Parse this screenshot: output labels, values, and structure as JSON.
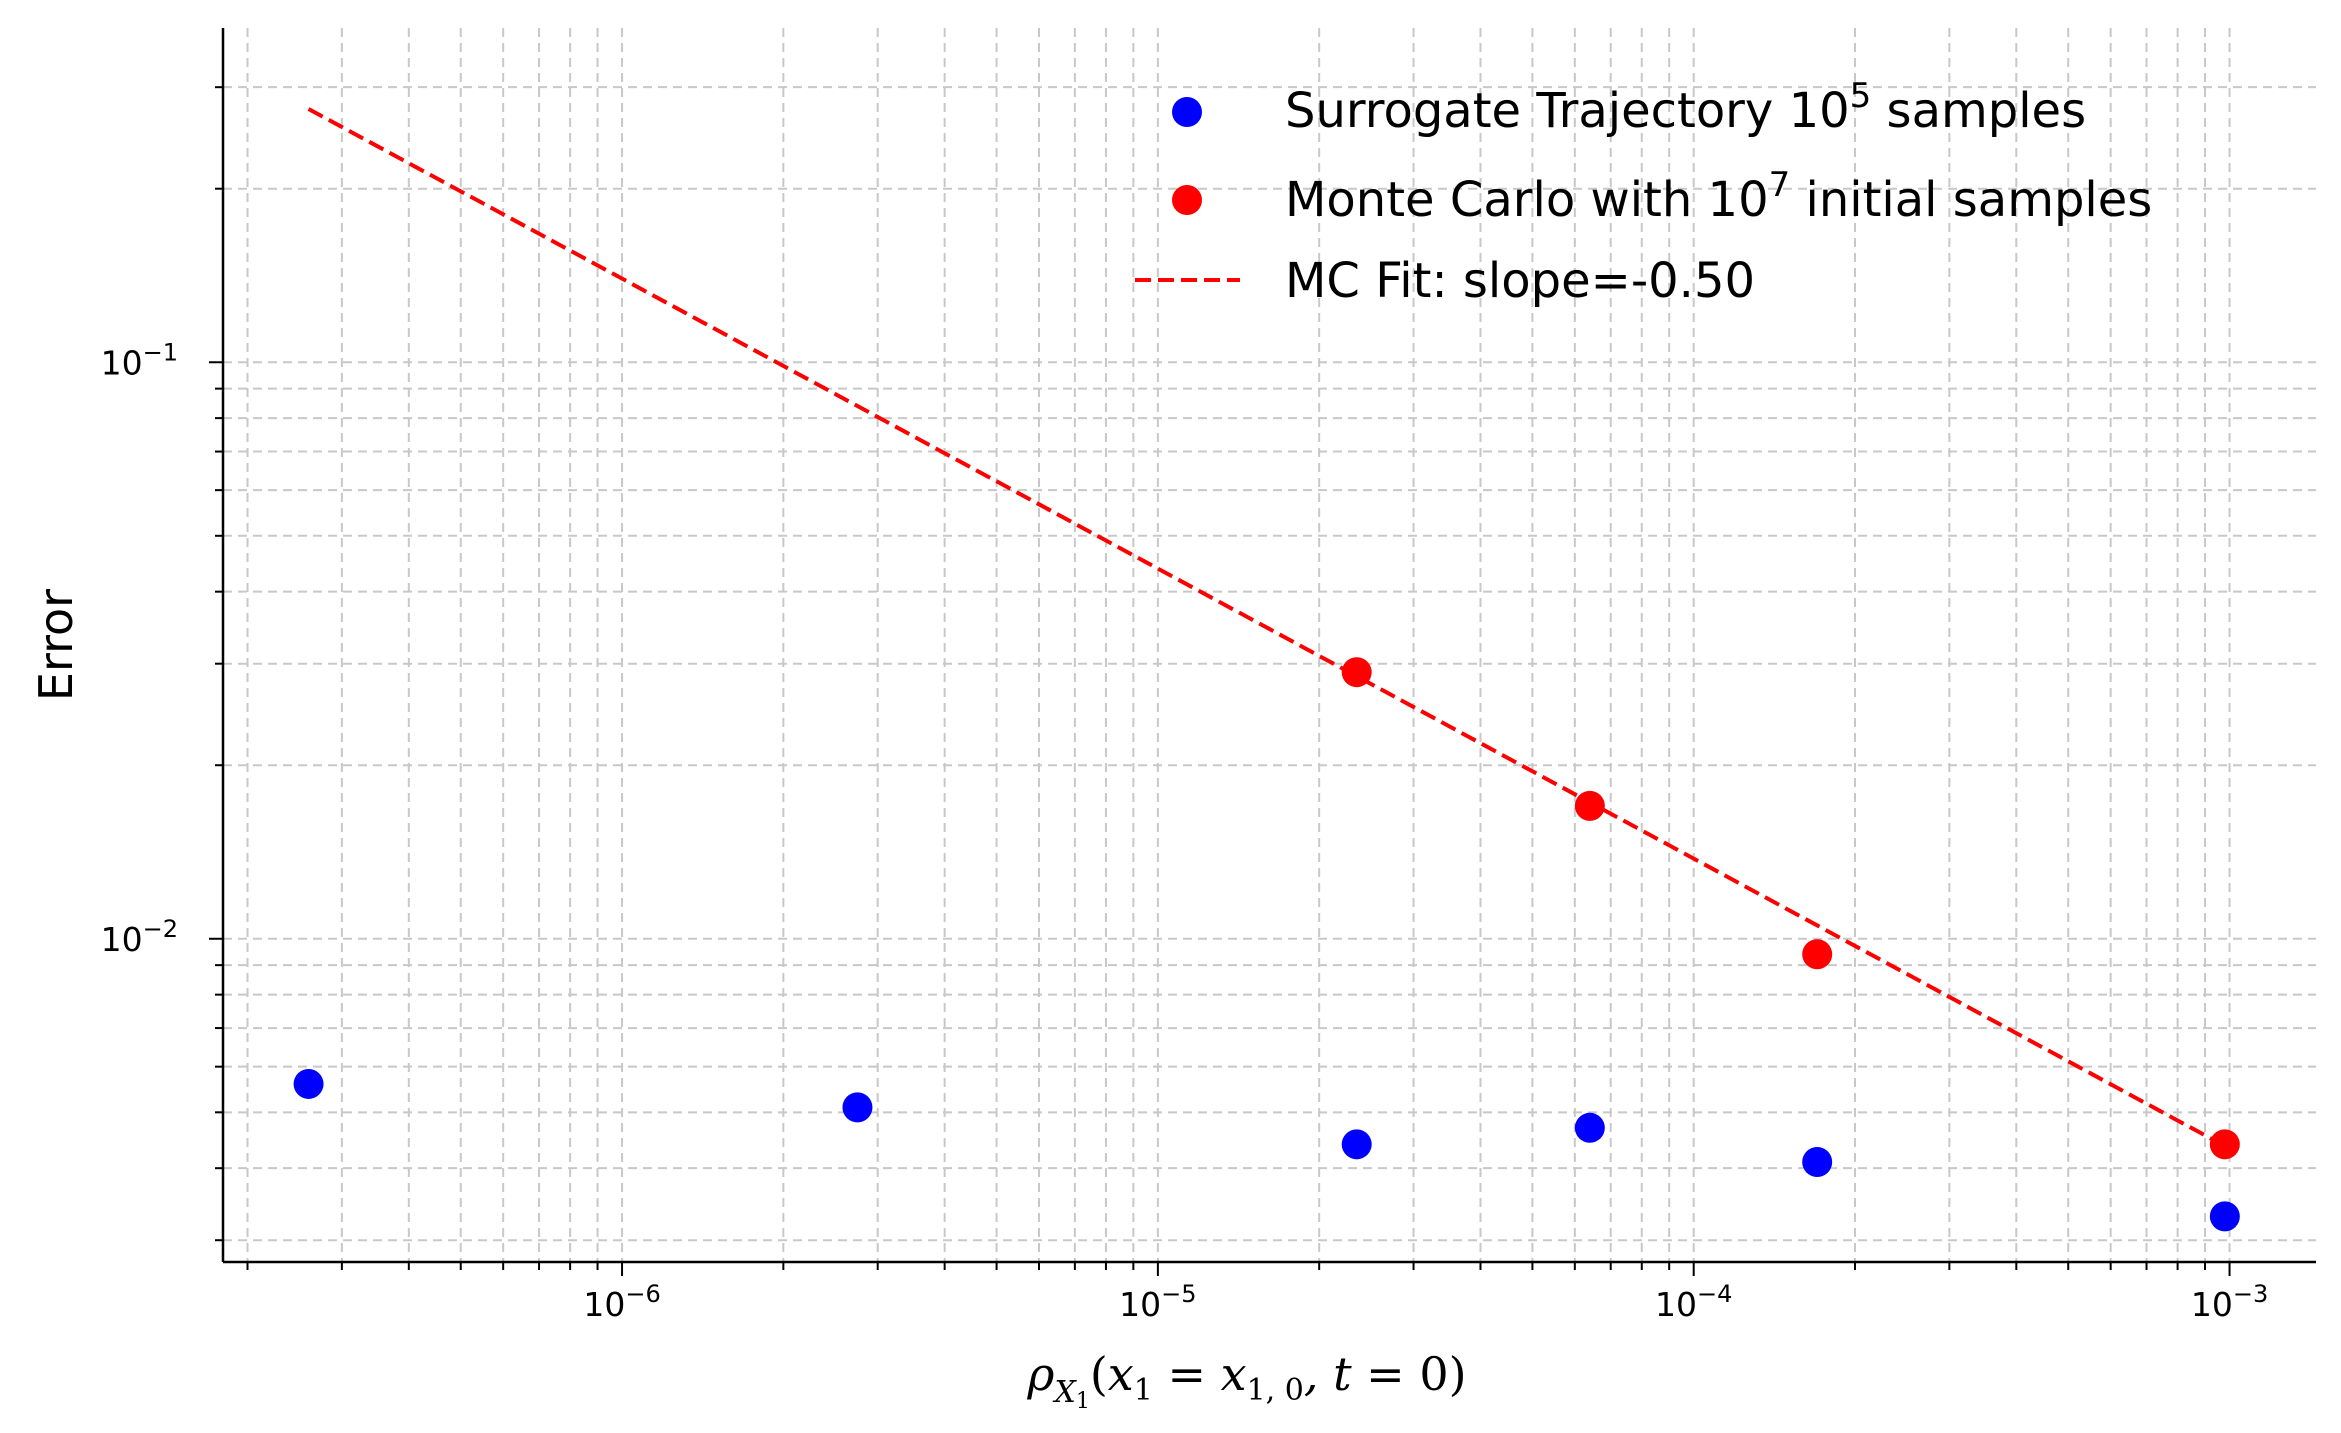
{
  "chart_data": {
    "type": "scatter",
    "title": "",
    "xscale": "log",
    "yscale": "log",
    "xlim": [
      1.8e-07,
      0.00145
    ],
    "ylim": [
      0.00275,
      0.38
    ],
    "grid": "both (major and minor), dashed gray",
    "legend_position": "top-right",
    "ylabel": "Error",
    "xlabel": {
      "rho": "ρ",
      "sub_X": "X",
      "sub_1": "1",
      "x1": "x",
      "x1_sub": "1",
      "eq": " = ",
      "x10": "x",
      "x10_sub": "1, 0",
      "comma_t": ", t",
      "eq0": " = 0",
      "open": "(",
      "close": ")"
    },
    "x_ticks": [
      {
        "value": 1e-06,
        "base": "10",
        "exp": "−6"
      },
      {
        "value": 1e-05,
        "base": "10",
        "exp": "−5"
      },
      {
        "value": 0.0001,
        "base": "10",
        "exp": "−4"
      },
      {
        "value": 0.001,
        "base": "10",
        "exp": "−3"
      }
    ],
    "y_ticks": [
      {
        "value": 0.1,
        "base": "10",
        "exp": "−1"
      },
      {
        "value": 0.01,
        "base": "10",
        "exp": "−2"
      }
    ],
    "series": [
      {
        "name_prefix": "Surrogate Trajectory 10",
        "name_sup": "5",
        "name_suffix": " samples",
        "kind": "scatter",
        "color": "#0000ff",
        "x": [
          2.6e-07,
          2.75e-06,
          2.35e-05,
          6.4e-05,
          0.00017,
          0.00098
        ],
        "y": [
          0.0056,
          0.0051,
          0.0044,
          0.0047,
          0.0041,
          0.0033
        ]
      },
      {
        "name_prefix": "Monte Carlo with 10",
        "name_sup": "7",
        "name_suffix": " initial samples",
        "kind": "scatter",
        "color": "#ff0000",
        "x": [
          2.35e-05,
          6.4e-05,
          0.00017,
          0.00098
        ],
        "y": [
          0.029,
          0.017,
          0.0094,
          0.0044
        ]
      },
      {
        "name": "MC Fit: slope=-0.50",
        "kind": "line",
        "style": "dashed",
        "color": "#ff0000",
        "slope": -0.5,
        "x": [
          2.6e-07,
          0.00098
        ],
        "y": [
          0.275,
          0.00437
        ]
      }
    ]
  }
}
